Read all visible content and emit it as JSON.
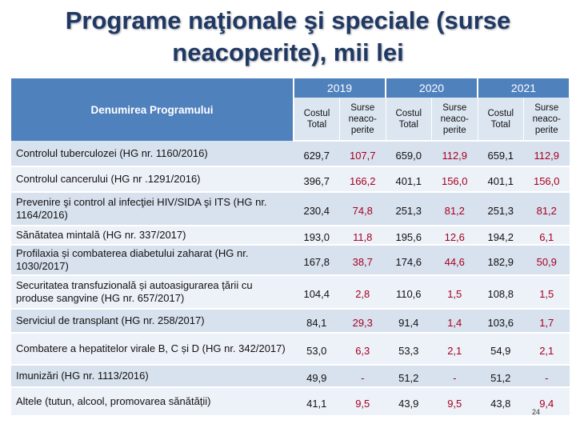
{
  "title": {
    "line1": "Programe naţionale şi speciale (surse",
    "line2": "neacoperite), mii lei"
  },
  "header": {
    "program_label": "Denumirea Programului",
    "years": [
      "2019",
      "2020",
      "2021"
    ],
    "cost_label_line1": "Costul",
    "cost_label_line2": "Total",
    "surse_label_line1": "Surse",
    "surse_label_line2": "neaco-",
    "surse_label_line3": "perite"
  },
  "rows": [
    {
      "name": "Controlul tuberculozei (HG nr. 1160/2016)",
      "v": [
        "629,7",
        "107,7",
        "659,0",
        "112,9",
        "659,1",
        "112,9"
      ]
    },
    {
      "name": "Controlul cancerului (HG nr .1291/2016)",
      "v": [
        "396,7",
        "166,2",
        "401,1",
        "156,0",
        "401,1",
        "156,0"
      ]
    },
    {
      "name": "Prevenire şi control al infecţiei HIV/SIDA şi ITS (HG nr. 1164/2016)",
      "v": [
        "230,4",
        "74,8",
        "251,3",
        "81,2",
        "251,3",
        "81,2"
      ]
    },
    {
      "name": "Sănătatea mintală (HG nr. 337/2017)",
      "v": [
        "193,0",
        "11,8",
        "195,6",
        "12,6",
        "194,2",
        "6,1"
      ]
    },
    {
      "name": "Profilaxia și combaterea diabetului zaharat (HG nr. 1030/2017)",
      "v": [
        "167,8",
        "38,7",
        "174,6",
        "44,6",
        "182,9",
        "50,9"
      ]
    },
    {
      "name": "Securitatea transfuzională și autoasigurarea țării cu produse sangvine (HG nr. 657/2017)",
      "v": [
        "104,4",
        "2,8",
        "110,6",
        "1,5",
        "108,8",
        "1,5"
      ]
    },
    {
      "name": "Serviciul de transplant (HG nr. 258/2017)",
      "v": [
        "84,1",
        "29,3",
        "91,4",
        "1,4",
        "103,6",
        "1,7"
      ]
    },
    {
      "name": "Combatere a hepatitelor virale B, C și D (HG nr. 342/2017)",
      "v": [
        "53,0",
        "6,3",
        "53,3",
        "2,1",
        "54,9",
        "2,1"
      ]
    },
    {
      "name": "Imunizări (HG nr. 1113/2016)",
      "v": [
        "49,9",
        "-",
        "51,2",
        "-",
        "51,2",
        "-"
      ]
    },
    {
      "name": "Altele (tutun, alcool, promovarea sănătății)",
      "v": [
        "41,1",
        "9,5",
        "43,9",
        "9,5",
        "43,8",
        "9,4"
      ]
    }
  ],
  "page_number": "24",
  "colors": {
    "header_bg": "#4f81bd",
    "subheader_bg": "#dce6f1",
    "row_odd": "#d8e1ee",
    "row_even": "#edf1f8",
    "title": "#1f3864",
    "uncovered_text": "#a50021"
  }
}
